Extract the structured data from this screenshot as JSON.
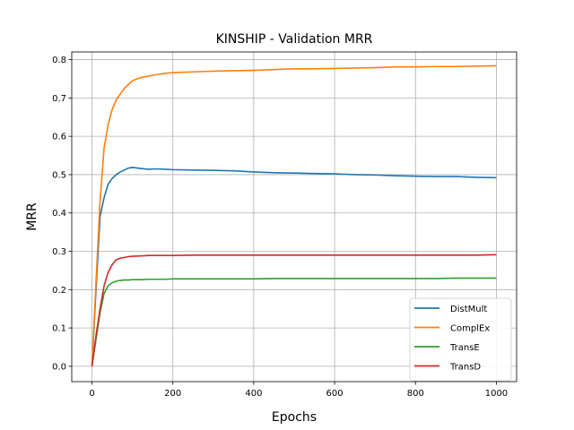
{
  "chart_data": {
    "type": "line",
    "title": "KINSHIP - Validation MRR",
    "xlabel": "Epochs",
    "ylabel": "MRR",
    "xlim": [
      -50,
      1050
    ],
    "ylim": [
      -0.04,
      0.82
    ],
    "xticks": [
      0,
      200,
      400,
      600,
      800,
      1000
    ],
    "yticks": [
      0.0,
      0.1,
      0.2,
      0.3,
      0.4,
      0.5,
      0.6,
      0.7,
      0.8
    ],
    "grid": true,
    "legend_position": "lower-right",
    "x": [
      0,
      10,
      20,
      30,
      40,
      50,
      60,
      70,
      80,
      90,
      100,
      120,
      140,
      160,
      180,
      200,
      250,
      300,
      350,
      400,
      450,
      500,
      550,
      600,
      650,
      700,
      750,
      800,
      850,
      900,
      950,
      1000
    ],
    "series": [
      {
        "name": "DistMult",
        "color": "#1f77b4",
        "values": [
          0.0,
          0.2,
          0.39,
          0.44,
          0.475,
          0.49,
          0.5,
          0.507,
          0.512,
          0.517,
          0.519,
          0.516,
          0.514,
          0.515,
          0.514,
          0.513,
          0.512,
          0.511,
          0.51,
          0.507,
          0.505,
          0.504,
          0.503,
          0.502,
          0.5,
          0.499,
          0.497,
          0.496,
          0.495,
          0.495,
          0.493,
          0.492
        ]
      },
      {
        "name": "ComplEx",
        "color": "#ff7f0e",
        "values": [
          0.0,
          0.22,
          0.43,
          0.57,
          0.63,
          0.67,
          0.695,
          0.71,
          0.725,
          0.735,
          0.745,
          0.753,
          0.757,
          0.761,
          0.764,
          0.766,
          0.768,
          0.77,
          0.771,
          0.772,
          0.774,
          0.776,
          0.776,
          0.777,
          0.778,
          0.779,
          0.781,
          0.781,
          0.782,
          0.782,
          0.783,
          0.784
        ]
      },
      {
        "name": "TransE",
        "color": "#2ca02c",
        "values": [
          0.0,
          0.07,
          0.14,
          0.19,
          0.21,
          0.218,
          0.222,
          0.224,
          0.225,
          0.225,
          0.226,
          0.226,
          0.227,
          0.227,
          0.227,
          0.228,
          0.228,
          0.228,
          0.228,
          0.228,
          0.229,
          0.229,
          0.229,
          0.229,
          0.229,
          0.229,
          0.229,
          0.229,
          0.229,
          0.23,
          0.23,
          0.23
        ]
      },
      {
        "name": "TransD",
        "color": "#d62728",
        "values": [
          0.0,
          0.08,
          0.15,
          0.21,
          0.245,
          0.265,
          0.278,
          0.282,
          0.284,
          0.286,
          0.287,
          0.288,
          0.289,
          0.289,
          0.289,
          0.289,
          0.29,
          0.29,
          0.29,
          0.29,
          0.29,
          0.29,
          0.29,
          0.29,
          0.29,
          0.29,
          0.29,
          0.29,
          0.29,
          0.29,
          0.29,
          0.291
        ]
      }
    ]
  }
}
